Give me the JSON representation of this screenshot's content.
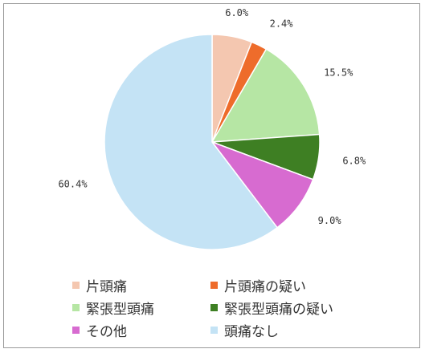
{
  "chart_data": {
    "type": "pie",
    "title": "",
    "categories": [
      "片頭痛",
      "片頭痛の疑い",
      "緊張型頭痛",
      "緊張型頭痛の疑い",
      "その他",
      "頭痛なし"
    ],
    "values": [
      6.0,
      2.4,
      15.5,
      6.8,
      9.0,
      60.4
    ],
    "labels": [
      "6.0%",
      "2.4%",
      "15.5%",
      "6.8%",
      "9.0%",
      "60.4%"
    ],
    "colors": [
      "#f4c7b0",
      "#ee6c2b",
      "#b6e6a4",
      "#3e7f23",
      "#d76bd0",
      "#c4e3f5"
    ],
    "start": "12 o'clock",
    "direction": "clockwise",
    "legend": {
      "placement": "bottom",
      "items": [
        {
          "label": "片頭痛",
          "color": "#f4c7b0"
        },
        {
          "label": "片頭痛の疑い",
          "color": "#ee6c2b"
        },
        {
          "label": "緊張型頭痛",
          "color": "#b6e6a4"
        },
        {
          "label": "緊張型頭痛の疑い",
          "color": "#3e7f23"
        },
        {
          "label": "その他",
          "color": "#d76bd0"
        },
        {
          "label": "頭痛なし",
          "color": "#c4e3f5"
        }
      ]
    }
  }
}
